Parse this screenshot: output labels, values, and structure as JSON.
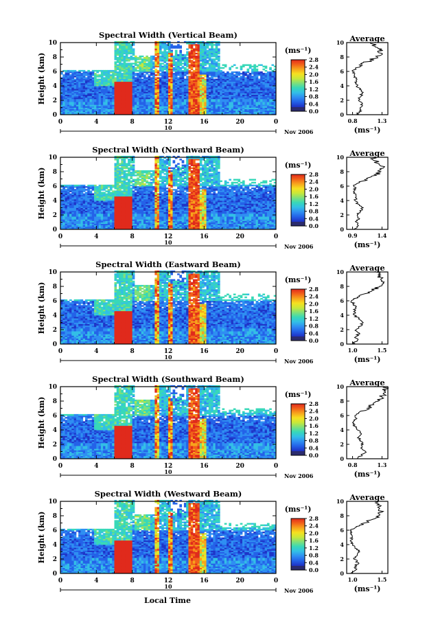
{
  "figure": {
    "xlabel": "Local Time",
    "date_label": "Nov 2006",
    "day_label": "10",
    "colorbar_unit": "(ms⁻¹)",
    "colorbar_ticks": [
      "0.0",
      "0.4",
      "0.8",
      "1.2",
      "1.6",
      "2.0",
      "2.4",
      "2.8"
    ],
    "colorbar_colors": [
      "#2b2b6e",
      "#1f35c8",
      "#2462e8",
      "#2f8ff2",
      "#33bfe6",
      "#38d8b8",
      "#7fe07a",
      "#c8e83a",
      "#f6e020",
      "#f7a41c",
      "#f2621a",
      "#e02a1c"
    ],
    "average_title": "Average",
    "average_unit": "(ms⁻¹)"
  },
  "chart_data": [
    {
      "type": "heatmap",
      "title": "Spectral Width (Vertical Beam)",
      "xlabel": "Local Time",
      "ylabel": "Height (km)",
      "xlim": [
        0,
        24
      ],
      "ylim": [
        0,
        10
      ],
      "xticks": [
        "0",
        "4",
        "8",
        "12",
        "16",
        "20",
        "0"
      ],
      "yticks": [
        "0",
        "2",
        "4",
        "6",
        "8",
        "10"
      ],
      "colorbar": {
        "unit": "(ms⁻¹)",
        "range": [
          0,
          2.8
        ]
      },
      "profile": {
        "title": "Average",
        "xlabel": "(ms⁻¹)",
        "xticks": [
          "0.8",
          "1.3"
        ],
        "xlim": [
          0.7,
          1.4
        ],
        "height": [
          0,
          0.5,
          1,
          1.5,
          2,
          2.5,
          3,
          3.5,
          4,
          4.5,
          5,
          5.5,
          6,
          6.5,
          7,
          7.5,
          8,
          8.5,
          9,
          9.5,
          10
        ],
        "value": [
          0.86,
          0.95,
          0.93,
          0.97,
          0.9,
          0.94,
          0.96,
          0.92,
          0.88,
          0.84,
          0.86,
          0.83,
          0.8,
          0.85,
          0.96,
          1.1,
          1.22,
          1.3,
          1.26,
          1.18,
          1.1
        ]
      }
    },
    {
      "type": "heatmap",
      "title": "Spectral Width (Northward Beam)",
      "xlabel": "Local Time",
      "ylabel": "Height (km)",
      "xlim": [
        0,
        24
      ],
      "ylim": [
        0,
        10
      ],
      "xticks": [
        "0",
        "4",
        "8",
        "12",
        "16",
        "20",
        "0"
      ],
      "yticks": [
        "0",
        "2",
        "4",
        "6",
        "8",
        "10"
      ],
      "colorbar": {
        "unit": "(ms⁻¹)",
        "range": [
          0,
          2.8
        ]
      },
      "profile": {
        "title": "Average",
        "xlabel": "(ms⁻¹)",
        "xticks": [
          "0.9",
          "1.4"
        ],
        "xlim": [
          0.8,
          1.5
        ],
        "height": [
          0,
          0.5,
          1,
          1.5,
          2,
          2.5,
          3,
          3.5,
          4,
          4.5,
          5,
          5.5,
          6,
          6.5,
          7,
          7.5,
          8,
          8.5,
          9,
          9.5,
          10
        ],
        "value": [
          0.92,
          1.0,
          0.96,
          1.02,
          0.98,
          1.04,
          1.08,
          1.0,
          0.94,
          0.96,
          0.92,
          0.95,
          0.92,
          1.02,
          1.15,
          1.3,
          1.38,
          1.42,
          1.35,
          1.3,
          1.25
        ]
      }
    },
    {
      "type": "heatmap",
      "title": "Spectral Width (Eastward Beam)",
      "xlabel": "Local Time",
      "ylabel": "Height (km)",
      "xlim": [
        0,
        24
      ],
      "ylim": [
        0,
        10
      ],
      "xticks": [
        "0",
        "4",
        "8",
        "12",
        "16",
        "20",
        "0"
      ],
      "yticks": [
        "0",
        "2",
        "4",
        "6",
        "8",
        "10"
      ],
      "colorbar": {
        "unit": "(ms⁻¹)",
        "range": [
          0,
          2.8
        ]
      },
      "profile": {
        "title": "Average",
        "xlabel": "(ms⁻¹)",
        "xticks": [
          "1.0",
          "1.5"
        ],
        "xlim": [
          0.9,
          1.6
        ],
        "height": [
          0,
          0.5,
          1,
          1.5,
          2,
          2.5,
          3,
          3.5,
          4,
          4.5,
          5,
          5.5,
          6,
          6.5,
          7,
          7.5,
          8,
          8.5,
          9,
          9.5,
          10
        ],
        "value": [
          1.0,
          1.08,
          1.05,
          1.12,
          1.06,
          1.14,
          1.18,
          1.1,
          1.04,
          1.02,
          1.06,
          1.02,
          0.98,
          1.08,
          1.22,
          1.36,
          1.46,
          1.52,
          1.48,
          1.44,
          1.4
        ]
      }
    },
    {
      "type": "heatmap",
      "title": "Spectral Width (Southward Beam)",
      "xlabel": "Local Time",
      "ylabel": "Height (km)",
      "xlim": [
        0,
        24
      ],
      "ylim": [
        0,
        10
      ],
      "xticks": [
        "0",
        "4",
        "8",
        "12",
        "16",
        "20",
        "0"
      ],
      "yticks": [
        "0",
        "2",
        "4",
        "6",
        "8",
        "10"
      ],
      "colorbar": {
        "unit": "(ms⁻¹)",
        "range": [
          0,
          2.8
        ]
      },
      "profile": {
        "title": "Average",
        "xlabel": "(ms⁻¹)",
        "xticks": [
          "0.8",
          "1.3"
        ],
        "xlim": [
          0.7,
          1.4
        ],
        "height": [
          0,
          0.5,
          1,
          1.5,
          2,
          2.5,
          3,
          3.5,
          4,
          4.5,
          5,
          5.5,
          6,
          6.5,
          7,
          7.5,
          8,
          8.5,
          9,
          9.5,
          10
        ],
        "value": [
          0.88,
          0.96,
          1.02,
          0.94,
          0.98,
          0.92,
          0.9,
          0.95,
          0.88,
          0.84,
          0.8,
          0.86,
          0.84,
          0.92,
          1.05,
          1.16,
          1.24,
          1.3,
          1.32,
          1.36,
          1.34
        ]
      }
    },
    {
      "type": "heatmap",
      "title": "Spectral Width (Westward Beam)",
      "xlabel": "Local Time",
      "ylabel": "Height (km)",
      "xlim": [
        0,
        24
      ],
      "ylim": [
        0,
        10
      ],
      "xticks": [
        "0",
        "4",
        "8",
        "12",
        "16",
        "20",
        "0"
      ],
      "yticks": [
        "0",
        "2",
        "4",
        "6",
        "8",
        "10"
      ],
      "colorbar": {
        "unit": "(ms⁻¹)",
        "range": [
          0,
          2.8
        ]
      },
      "profile": {
        "title": "Average",
        "xlabel": "(ms⁻¹)",
        "xticks": [
          "1.0",
          "1.5"
        ],
        "xlim": [
          0.9,
          1.6
        ],
        "height": [
          0,
          0.5,
          1,
          1.5,
          2,
          2.5,
          3,
          3.5,
          4,
          4.5,
          5,
          5.5,
          6,
          6.5,
          7,
          7.5,
          8,
          8.5,
          9,
          9.5,
          10
        ],
        "value": [
          0.98,
          1.06,
          1.04,
          1.1,
          1.02,
          1.08,
          1.12,
          1.04,
          1.0,
          0.96,
          1.0,
          0.98,
          0.96,
          1.06,
          1.2,
          1.34,
          1.44,
          1.5,
          1.46,
          1.42,
          1.38
        ]
      }
    }
  ]
}
